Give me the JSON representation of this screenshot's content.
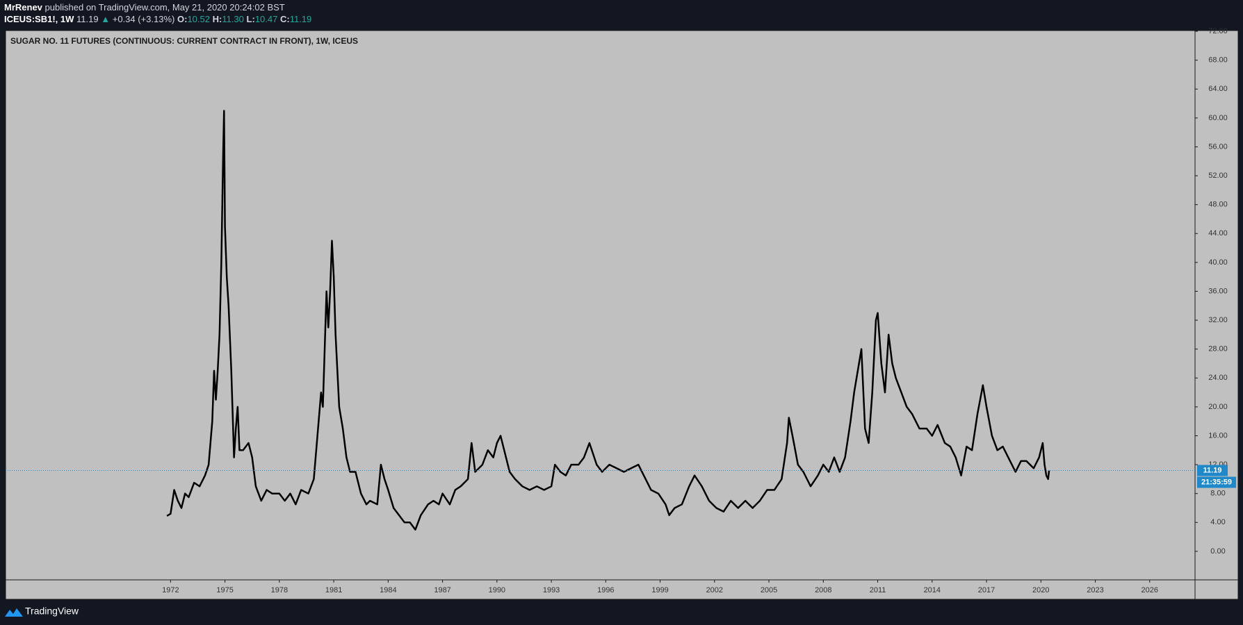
{
  "header": {
    "author": "MrRenev",
    "published": "published on TradingView.com, May 21, 2020 20:24:02 BST",
    "symbol": "ICEUS:SB1!, 1W",
    "last": "11.19",
    "arrow": "▲",
    "change": "+0.34 (+3.13%)",
    "ohlc": [
      {
        "label": "O:",
        "value": "10.52"
      },
      {
        "label": "H:",
        "value": "11.30"
      },
      {
        "label": "L:",
        "value": "10.47"
      },
      {
        "label": "C:",
        "value": "11.19"
      }
    ]
  },
  "chart_data": {
    "type": "line",
    "title": "SUGAR NO. 11 FUTURES (CONTINUOUS: CURRENT CONTRACT IN FRONT), 1W, ICEUS",
    "color": "#000000",
    "grid": false,
    "last_price": 11.19,
    "countdown": "21:35:59",
    "x": [
      1971.8,
      1972.0,
      1972.2,
      1972.4,
      1972.6,
      1972.8,
      1973.0,
      1973.3,
      1973.6,
      1973.9,
      1974.1,
      1974.3,
      1974.4,
      1974.5,
      1974.6,
      1974.7,
      1974.8,
      1974.9,
      1974.95,
      1975.0,
      1975.1,
      1975.2,
      1975.35,
      1975.5,
      1975.6,
      1975.7,
      1975.8,
      1976.0,
      1976.3,
      1976.5,
      1976.7,
      1977.0,
      1977.3,
      1977.6,
      1978.0,
      1978.3,
      1978.6,
      1978.9,
      1979.2,
      1979.6,
      1979.9,
      1980.1,
      1980.3,
      1980.4,
      1980.5,
      1980.6,
      1980.7,
      1980.8,
      1980.9,
      1981.0,
      1981.1,
      1981.3,
      1981.5,
      1981.7,
      1981.9,
      1982.2,
      1982.5,
      1982.8,
      1983.0,
      1983.4,
      1983.6,
      1983.8,
      1984.0,
      1984.3,
      1984.6,
      1984.9,
      1985.2,
      1985.5,
      1985.8,
      1986.2,
      1986.5,
      1986.8,
      1987.0,
      1987.4,
      1987.7,
      1988.0,
      1988.4,
      1988.6,
      1988.8,
      1989.2,
      1989.5,
      1989.8,
      1990.0,
      1990.2,
      1990.4,
      1990.7,
      1991.0,
      1991.4,
      1991.8,
      1992.2,
      1992.6,
      1993.0,
      1993.2,
      1993.5,
      1993.8,
      1994.1,
      1994.5,
      1994.8,
      1995.1,
      1995.5,
      1995.8,
      1996.2,
      1996.6,
      1997.0,
      1997.4,
      1997.8,
      1998.2,
      1998.5,
      1998.9,
      1999.3,
      1999.5,
      1999.8,
      2000.2,
      2000.6,
      2000.9,
      2001.3,
      2001.7,
      2002.1,
      2002.5,
      2002.9,
      2003.3,
      2003.7,
      2004.1,
      2004.5,
      2004.9,
      2005.3,
      2005.7,
      2006.0,
      2006.1,
      2006.3,
      2006.6,
      2006.9,
      2007.3,
      2007.7,
      2008.0,
      2008.3,
      2008.6,
      2008.9,
      2009.2,
      2009.5,
      2009.7,
      2009.9,
      2010.1,
      2010.3,
      2010.5,
      2010.7,
      2010.9,
      2011.0,
      2011.2,
      2011.4,
      2011.6,
      2011.8,
      2012.0,
      2012.3,
      2012.6,
      2012.9,
      2013.3,
      2013.7,
      2014.0,
      2014.3,
      2014.7,
      2015.0,
      2015.3,
      2015.6,
      2015.9,
      2016.2,
      2016.5,
      2016.8,
      2017.0,
      2017.3,
      2017.6,
      2017.9,
      2018.2,
      2018.6,
      2018.9,
      2019.2,
      2019.6,
      2019.9,
      2020.1,
      2020.2,
      2020.3,
      2020.4,
      2020.45
    ],
    "values": [
      4.9,
      5.2,
      8.5,
      7.0,
      6.0,
      8.0,
      7.5,
      9.5,
      9.0,
      10.5,
      12,
      18,
      25,
      21,
      25,
      30,
      40,
      55,
      61,
      45,
      38,
      34,
      25,
      13,
      17,
      20,
      14,
      14,
      15,
      13,
      9,
      7,
      8.5,
      8,
      8,
      7,
      8,
      6.5,
      8.5,
      8,
      10,
      16,
      22,
      20,
      28,
      36,
      31,
      36,
      43,
      38,
      30,
      20,
      17,
      13,
      11,
      11,
      8,
      6.5,
      7,
      6.5,
      12,
      10,
      8.5,
      6,
      5,
      4,
      4.0,
      3.0,
      5,
      6.5,
      7,
      6.5,
      8,
      6.5,
      8.5,
      9,
      10,
      15,
      11,
      12,
      14,
      13,
      15,
      16,
      14,
      11,
      10,
      9,
      8.5,
      9,
      8.5,
      9,
      12,
      11,
      10.5,
      12,
      12,
      13,
      15,
      12,
      11,
      12,
      11.5,
      11,
      11.5,
      12,
      10,
      8.5,
      8,
      6.5,
      5,
      6,
      6.5,
      9,
      10.5,
      9,
      7,
      6,
      5.5,
      7,
      6,
      7,
      6,
      7,
      8.5,
      8.5,
      10,
      15,
      18.5,
      16,
      12,
      11,
      9,
      10.5,
      12,
      11,
      13,
      11,
      13,
      18,
      22,
      25,
      28,
      17,
      15,
      22,
      32,
      33,
      26,
      22,
      30,
      26,
      24,
      22,
      20,
      19,
      17,
      17,
      16,
      17.5,
      15,
      14.5,
      13,
      10.5,
      14.5,
      14,
      19,
      23,
      20,
      16,
      14,
      14.5,
      13,
      11,
      12.5,
      12.5,
      11.5,
      13,
      15,
      12,
      10.5,
      10,
      11.19
    ],
    "xlim": [
      1962.9,
      2028.5
    ],
    "xticks": [
      1972,
      1975,
      1978,
      1981,
      1984,
      1987,
      1990,
      1993,
      1996,
      1999,
      2002,
      2005,
      2008,
      2011,
      2014,
      2017,
      2020,
      2023,
      2026
    ],
    "ylim": [
      -3.95,
      72.1
    ],
    "yticks": [
      {
        "value": 0,
        "label": "0.00"
      },
      {
        "value": 4,
        "label": "4.00"
      },
      {
        "value": 8,
        "label": "8.00"
      },
      {
        "value": 12,
        "label": "12.00"
      },
      {
        "value": 16,
        "label": "16.00"
      },
      {
        "value": 20,
        "label": "20.00"
      },
      {
        "value": 24,
        "label": "24.00"
      },
      {
        "value": 28,
        "label": "28.00"
      },
      {
        "value": 32,
        "label": "32.00"
      },
      {
        "value": 36,
        "label": "36.00"
      },
      {
        "value": 40,
        "label": "40.00"
      },
      {
        "value": 44,
        "label": "44.00"
      },
      {
        "value": 48,
        "label": "48.00"
      },
      {
        "value": 52,
        "label": "52.00"
      },
      {
        "value": 56,
        "label": "56.00"
      },
      {
        "value": 60,
        "label": "60.00"
      },
      {
        "value": 64,
        "label": "64.00"
      },
      {
        "value": 68,
        "label": "68.00"
      },
      {
        "value": 72,
        "label": "72.00"
      }
    ]
  },
  "footer": {
    "brand": "TradingView"
  }
}
